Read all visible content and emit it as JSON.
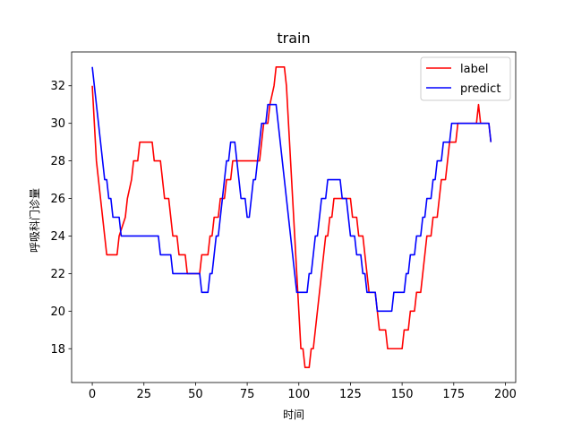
{
  "chart_data": {
    "type": "line",
    "title": "train",
    "xlabel": "时间",
    "ylabel": "呼吸科门诊量",
    "xlim": [
      -10,
      205
    ],
    "ylim": [
      16.2,
      33.8
    ],
    "xticks": [
      0,
      25,
      50,
      75,
      100,
      125,
      150,
      175,
      200
    ],
    "yticks": [
      18,
      20,
      22,
      24,
      26,
      28,
      30,
      32
    ],
    "grid": false,
    "legend_position": "top-right",
    "series": [
      {
        "name": "label",
        "color": "#ff0000",
        "points": [
          [
            0,
            32
          ],
          [
            1,
            30
          ],
          [
            2,
            28
          ],
          [
            3,
            27
          ],
          [
            4,
            26
          ],
          [
            5,
            25
          ],
          [
            6,
            24
          ],
          [
            7,
            23
          ],
          [
            12,
            23
          ],
          [
            13,
            24
          ],
          [
            16,
            25
          ],
          [
            17,
            26
          ],
          [
            19,
            27
          ],
          [
            20,
            28
          ],
          [
            22,
            28
          ],
          [
            23,
            29
          ],
          [
            29,
            29
          ],
          [
            30,
            28
          ],
          [
            33,
            28
          ],
          [
            34,
            27
          ],
          [
            35,
            26
          ],
          [
            37,
            26
          ],
          [
            38,
            25
          ],
          [
            39,
            24
          ],
          [
            41,
            24
          ],
          [
            42,
            23
          ],
          [
            45,
            23
          ],
          [
            46,
            22
          ],
          [
            52,
            22
          ],
          [
            53,
            23
          ],
          [
            56,
            23
          ],
          [
            57,
            24
          ],
          [
            58,
            24
          ],
          [
            59,
            25
          ],
          [
            61,
            25
          ],
          [
            62,
            26
          ],
          [
            64,
            26
          ],
          [
            65,
            27
          ],
          [
            67,
            27
          ],
          [
            68,
            28
          ],
          [
            81,
            28
          ],
          [
            82,
            29
          ],
          [
            83,
            30
          ],
          [
            85,
            30
          ],
          [
            86,
            31
          ],
          [
            88,
            32
          ],
          [
            89,
            33
          ],
          [
            93,
            33
          ],
          [
            94,
            32
          ],
          [
            95,
            30
          ],
          [
            96,
            28
          ],
          [
            97,
            26
          ],
          [
            98,
            24
          ],
          [
            99,
            22
          ],
          [
            100,
            20
          ],
          [
            101,
            18
          ],
          [
            102,
            18
          ],
          [
            103,
            17
          ],
          [
            105,
            17
          ],
          [
            106,
            18
          ],
          [
            107,
            18
          ],
          [
            108,
            19
          ],
          [
            109,
            20
          ],
          [
            110,
            21
          ],
          [
            111,
            22
          ],
          [
            112,
            23
          ],
          [
            113,
            24
          ],
          [
            114,
            24
          ],
          [
            115,
            25
          ],
          [
            116,
            25
          ],
          [
            117,
            26
          ],
          [
            124,
            26
          ],
          [
            125,
            26
          ],
          [
            126,
            25
          ],
          [
            128,
            25
          ],
          [
            129,
            24
          ],
          [
            131,
            24
          ],
          [
            132,
            23
          ],
          [
            133,
            22
          ],
          [
            134,
            21
          ],
          [
            137,
            21
          ],
          [
            138,
            20
          ],
          [
            139,
            19
          ],
          [
            142,
            19
          ],
          [
            143,
            18
          ],
          [
            150,
            18
          ],
          [
            151,
            19
          ],
          [
            153,
            19
          ],
          [
            154,
            20
          ],
          [
            156,
            20
          ],
          [
            157,
            21
          ],
          [
            159,
            21
          ],
          [
            160,
            22
          ],
          [
            161,
            23
          ],
          [
            162,
            24
          ],
          [
            164,
            24
          ],
          [
            165,
            25
          ],
          [
            167,
            25
          ],
          [
            168,
            26
          ],
          [
            169,
            27
          ],
          [
            171,
            27
          ],
          [
            172,
            28
          ],
          [
            173,
            29
          ],
          [
            176,
            29
          ],
          [
            177,
            30
          ],
          [
            186,
            30
          ],
          [
            187,
            31
          ],
          [
            188,
            30
          ],
          [
            192,
            30
          ],
          [
            193,
            29
          ]
        ]
      },
      {
        "name": "predict",
        "color": "#0000ff",
        "points": [
          [
            0,
            33
          ],
          [
            1,
            32
          ],
          [
            2,
            31
          ],
          [
            3,
            30
          ],
          [
            4,
            29
          ],
          [
            5,
            28
          ],
          [
            6,
            27
          ],
          [
            7,
            27
          ],
          [
            8,
            26
          ],
          [
            9,
            26
          ],
          [
            10,
            25
          ],
          [
            13,
            25
          ],
          [
            14,
            24
          ],
          [
            32,
            24
          ],
          [
            33,
            23
          ],
          [
            38,
            23
          ],
          [
            39,
            22
          ],
          [
            52,
            22
          ],
          [
            53,
            21
          ],
          [
            56,
            21
          ],
          [
            57,
            22
          ],
          [
            58,
            22
          ],
          [
            59,
            23
          ],
          [
            60,
            24
          ],
          [
            61,
            24
          ],
          [
            62,
            25
          ],
          [
            63,
            26
          ],
          [
            64,
            27
          ],
          [
            65,
            28
          ],
          [
            66,
            28
          ],
          [
            67,
            29
          ],
          [
            69,
            29
          ],
          [
            70,
            28
          ],
          [
            71,
            27
          ],
          [
            72,
            26
          ],
          [
            74,
            26
          ],
          [
            75,
            25
          ],
          [
            76,
            25
          ],
          [
            77,
            26
          ],
          [
            78,
            27
          ],
          [
            79,
            27
          ],
          [
            80,
            28
          ],
          [
            81,
            29
          ],
          [
            82,
            30
          ],
          [
            84,
            30
          ],
          [
            85,
            31
          ],
          [
            89,
            31
          ],
          [
            90,
            30
          ],
          [
            91,
            29
          ],
          [
            92,
            28
          ],
          [
            93,
            27
          ],
          [
            94,
            26
          ],
          [
            95,
            25
          ],
          [
            96,
            24
          ],
          [
            97,
            23
          ],
          [
            98,
            22
          ],
          [
            99,
            21
          ],
          [
            104,
            21
          ],
          [
            105,
            22
          ],
          [
            106,
            22
          ],
          [
            107,
            23
          ],
          [
            108,
            24
          ],
          [
            109,
            24
          ],
          [
            110,
            25
          ],
          [
            111,
            26
          ],
          [
            113,
            26
          ],
          [
            114,
            27
          ],
          [
            120,
            27
          ],
          [
            121,
            26
          ],
          [
            123,
            26
          ],
          [
            124,
            25
          ],
          [
            125,
            24
          ],
          [
            127,
            24
          ],
          [
            128,
            23
          ],
          [
            130,
            23
          ],
          [
            131,
            22
          ],
          [
            132,
            22
          ],
          [
            133,
            21
          ],
          [
            137,
            21
          ],
          [
            138,
            20
          ],
          [
            145,
            20
          ],
          [
            146,
            21
          ],
          [
            151,
            21
          ],
          [
            152,
            22
          ],
          [
            153,
            22
          ],
          [
            154,
            23
          ],
          [
            156,
            23
          ],
          [
            157,
            24
          ],
          [
            159,
            24
          ],
          [
            160,
            25
          ],
          [
            161,
            25
          ],
          [
            162,
            26
          ],
          [
            164,
            26
          ],
          [
            165,
            27
          ],
          [
            166,
            27
          ],
          [
            167,
            28
          ],
          [
            169,
            28
          ],
          [
            170,
            29
          ],
          [
            173,
            29
          ],
          [
            174,
            30
          ],
          [
            188,
            30
          ],
          [
            189,
            30
          ],
          [
            192,
            30
          ],
          [
            193,
            29
          ]
        ]
      }
    ]
  }
}
